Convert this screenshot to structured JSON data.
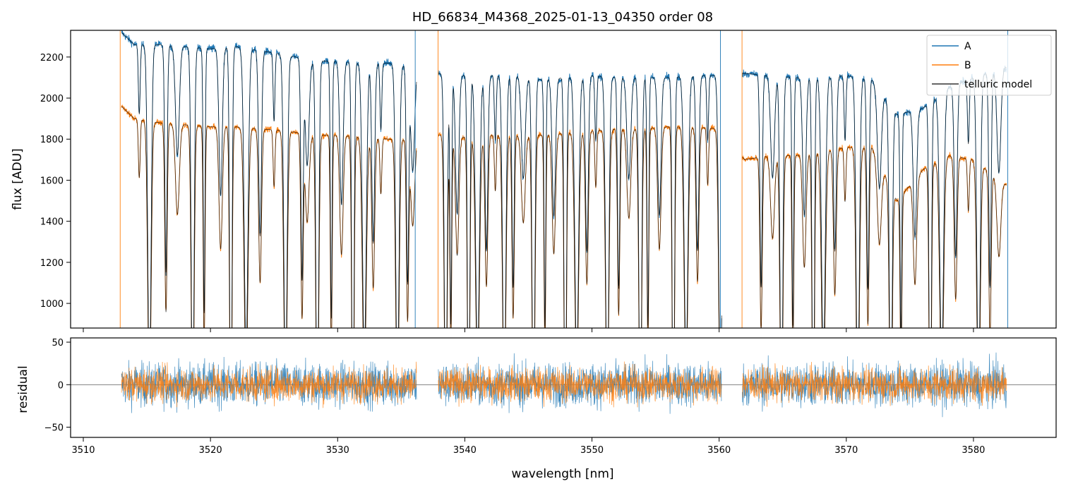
{
  "chart_data": [
    {
      "type": "line",
      "title": "HD_66834_M4368_2025-01-13_04350  order 08",
      "ylabel": "flux [ADU]",
      "xlim": [
        3509.0,
        3586.5
      ],
      "ylim": [
        880,
        2330
      ],
      "yticks": [
        1000,
        1200,
        1400,
        1600,
        1800,
        2000,
        2200
      ],
      "grid": false,
      "legend_position": "top-right",
      "legend": [
        "A",
        "B",
        "telluric model"
      ],
      "series": [
        {
          "name": "A",
          "color": "#1f77b4",
          "x": [
            3513.0,
            3514.0,
            3516.0,
            3518.0,
            3520.0,
            3522.0,
            3524.0,
            3526.0,
            3528.0,
            3530.0,
            3532.0,
            3534.0,
            3536.0,
            3538.0,
            3540.0,
            3542.0,
            3544.0,
            3546.0,
            3548.0,
            3550.0,
            3552.0,
            3554.0,
            3556.0,
            3558.0,
            3560.0,
            3562.0,
            3564.0,
            3566.0,
            3568.0,
            3570.0,
            3572.0,
            3574.0,
            3576.0,
            3578.0,
            3580.0,
            3582.5
          ],
          "y": [
            2320,
            2260,
            2260,
            2250,
            2240,
            2250,
            2230,
            2210,
            2180,
            2180,
            2170,
            2170,
            2150,
            2120,
            2110,
            2110,
            2110,
            2090,
            2100,
            2110,
            2100,
            2100,
            2100,
            2110,
            2110,
            2120,
            2110,
            2100,
            2100,
            2110,
            2090,
            1920,
            1950,
            2050,
            2100,
            2150
          ]
        },
        {
          "name": "B",
          "color": "#ff7f0e",
          "x": [
            3513.0,
            3514.0,
            3516.0,
            3518.0,
            3520.0,
            3522.0,
            3524.0,
            3526.0,
            3528.0,
            3530.0,
            3532.0,
            3534.0,
            3536.0,
            3538.0,
            3540.0,
            3542.0,
            3544.0,
            3546.0,
            3548.0,
            3550.0,
            3552.0,
            3554.0,
            3556.0,
            3558.0,
            3560.0,
            3562.0,
            3564.0,
            3566.0,
            3568.0,
            3570.0,
            3572.0,
            3574.0,
            3576.0,
            3578.0,
            3580.0,
            3582.5
          ],
          "y": [
            1960,
            1900,
            1880,
            1870,
            1860,
            1860,
            1850,
            1840,
            1820,
            1820,
            1810,
            1800,
            1800,
            1820,
            1810,
            1820,
            1820,
            1820,
            1830,
            1840,
            1850,
            1850,
            1860,
            1860,
            1850,
            1700,
            1720,
            1720,
            1740,
            1760,
            1760,
            1500,
            1650,
            1720,
            1700,
            1580
          ]
        },
        {
          "name": "telluric model",
          "color": "#000000",
          "trace_of": [
            "A",
            "B"
          ]
        }
      ],
      "absorption_lines_nm": [
        3514.4,
        3515.2,
        3516.5,
        3517.4,
        3518.6,
        3519.5,
        3520.8,
        3521.6,
        3522.8,
        3523.9,
        3525.0,
        3525.9,
        3527.2,
        3527.6,
        3528.4,
        3529.5,
        3530.3,
        3531.2,
        3532.1,
        3532.8,
        3533.4,
        3534.7,
        3535.5,
        3535.9,
        3538.5,
        3538.9,
        3539.4,
        3540.3,
        3541.0,
        3541.7,
        3542.4,
        3543.1,
        3543.8,
        3544.6,
        3545.4,
        3546.3,
        3547.0,
        3547.9,
        3548.8,
        3549.6,
        3550.3,
        3551.2,
        3552.1,
        3552.9,
        3553.8,
        3554.4,
        3555.3,
        3556.4,
        3557.4,
        3558.3,
        3559.1,
        3560.1,
        3563.3,
        3564.2,
        3564.9,
        3565.8,
        3566.7,
        3567.4,
        3568.2,
        3569.1,
        3569.9,
        3570.9,
        3571.7,
        3572.6,
        3573.5,
        3574.3,
        3575.4,
        3576.6,
        3577.5,
        3578.6,
        3579.6,
        3580.4,
        3581.3,
        3582.0
      ],
      "gaps_nm": [
        [
          3536.2,
          3537.9
        ],
        [
          3560.2,
          3561.8
        ]
      ]
    },
    {
      "type": "line",
      "xlabel": "wavelength [nm]",
      "ylabel": "residual",
      "xlim": [
        3509.0,
        3586.5
      ],
      "ylim": [
        -62,
        55
      ],
      "xticks": [
        3510,
        3520,
        3530,
        3540,
        3550,
        3560,
        3570,
        3580
      ],
      "yticks": [
        -50,
        0,
        50
      ],
      "grid": false,
      "zero_line": true,
      "series": [
        {
          "name": "A",
          "color": "#1f77b4"
        },
        {
          "name": "B",
          "color": "#ff7f0e"
        }
      ]
    }
  ]
}
